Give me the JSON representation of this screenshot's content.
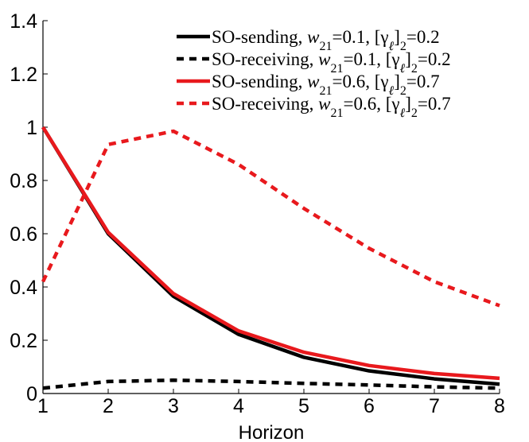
{
  "chart_data": {
    "type": "line",
    "title": "",
    "xlabel": "Horizon",
    "ylabel": "",
    "xlim": [
      1,
      8
    ],
    "ylim": [
      0,
      1.4
    ],
    "x": [
      1,
      2,
      3,
      4,
      5,
      6,
      7,
      8
    ],
    "x_ticks": [
      "1",
      "2",
      "3",
      "4",
      "5",
      "6",
      "7",
      "8"
    ],
    "y_ticks": [
      "0",
      "0.2",
      "0.4",
      "0.6",
      "0.8",
      "1",
      "1.2",
      "1.4"
    ],
    "grid": false,
    "legend_position": "top-right",
    "series": [
      {
        "name": "SO-sending, w21=0.1, [γℓ]2=0.2",
        "color": "#000000",
        "style": "solid",
        "values": [
          1.0,
          0.6,
          0.365,
          0.222,
          0.136,
          0.085,
          0.055,
          0.035
        ]
      },
      {
        "name": "SO-receiving, w21=0.1, [γℓ]2=0.2",
        "color": "#000000",
        "style": "dashed",
        "values": [
          0.02,
          0.045,
          0.05,
          0.045,
          0.038,
          0.032,
          0.025,
          0.02
        ]
      },
      {
        "name": "SO-sending, w21=0.6, [γℓ]2=0.7",
        "color": "#e8191d",
        "style": "solid",
        "values": [
          1.0,
          0.605,
          0.375,
          0.235,
          0.155,
          0.105,
          0.075,
          0.057
        ]
      },
      {
        "name": "SO-receiving, w21=0.6, [γℓ]2=0.7",
        "color": "#e8191d",
        "style": "dashed",
        "values": [
          0.42,
          0.935,
          0.985,
          0.86,
          0.695,
          0.545,
          0.42,
          0.33
        ]
      }
    ],
    "legend_labels": [
      {
        "prefix": "SO-sending, ",
        "w": "w",
        "w_sub": "21",
        "w_val": "=0.1, ",
        "g": "[γ",
        "g_sub": "ℓ",
        "g_close": "]",
        "g_sub2": "2",
        "g_val": "=0.2"
      },
      {
        "prefix": "SO-receiving, ",
        "w": "w",
        "w_sub": "21",
        "w_val": "=0.1, ",
        "g": "[γ",
        "g_sub": "ℓ",
        "g_close": "]",
        "g_sub2": "2",
        "g_val": "=0.2"
      },
      {
        "prefix": "SO-sending, ",
        "w": "w",
        "w_sub": "21",
        "w_val": "=0.6, ",
        "g": "[γ",
        "g_sub": "ℓ",
        "g_close": "]",
        "g_sub2": "2",
        "g_val": "=0.7"
      },
      {
        "prefix": "SO-receiving, ",
        "w": "w",
        "w_sub": "21",
        "w_val": "=0.6, ",
        "g": "[γ",
        "g_sub": "ℓ",
        "g_close": "]",
        "g_sub2": "2",
        "g_val": "=0.7"
      }
    ]
  }
}
